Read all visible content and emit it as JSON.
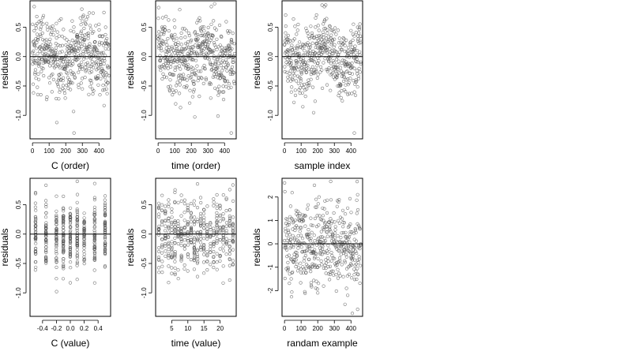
{
  "figure": {
    "background": "#ffffff",
    "point_color": "#555555",
    "line_color": "#000000"
  },
  "chart_data": [
    {
      "type": "scatter",
      "xlabel": "C (order)",
      "ylabel": "residuals",
      "xlim": [
        -15,
        470
      ],
      "ylim": [
        -1.4,
        0.95
      ],
      "xticks": [
        0,
        100,
        200,
        300,
        400
      ],
      "yticks": [
        -1.0,
        -0.5,
        0.0,
        0.5
      ],
      "ytick_labels": [
        "-1.0",
        "-0.5",
        "0.0",
        "0.5"
      ],
      "hline": 0,
      "points": {
        "x": [
          0,
          20,
          40,
          60,
          80,
          100,
          120,
          140,
          160,
          180,
          200,
          220,
          240,
          260,
          280,
          300,
          320,
          340,
          360,
          380,
          400,
          420,
          440,
          460,
          10,
          250,
          430,
          50,
          300
        ],
        "y": [
          0.55,
          0.3,
          -0.1,
          0.4,
          0.05,
          0.25,
          -0.3,
          0.1,
          0.35,
          -0.2,
          0.0,
          0.15,
          -0.45,
          0.2,
          -0.15,
          0.3,
          -0.25,
          0.05,
          0.4,
          0.15,
          0.55,
          0.35,
          0.5,
          0.2,
          0.85,
          -1.3,
          0.75,
          -0.65,
          -0.55
        ]
      },
      "n_points": 460
    },
    {
      "type": "scatter",
      "xlabel": "time (order)",
      "ylabel": "residuals",
      "xlim": [
        -15,
        470
      ],
      "ylim": [
        -1.4,
        0.95
      ],
      "xticks": [
        0,
        100,
        200,
        300,
        400
      ],
      "yticks": [
        -1.0,
        -0.5,
        0.0,
        0.5
      ],
      "ytick_labels": [
        "-1.0",
        "-0.5",
        "0.0",
        "0.5"
      ],
      "hline": 0,
      "points": {
        "x": [
          0,
          20,
          40,
          60,
          80,
          100,
          120,
          140,
          160,
          180,
          200,
          220,
          240,
          260,
          280,
          300,
          320,
          340,
          360,
          380,
          400,
          420,
          440,
          460,
          130,
          320,
          440
        ],
        "y": [
          0.3,
          0.1,
          0.45,
          -0.2,
          0.35,
          0.5,
          0.2,
          0.4,
          -0.1,
          0.25,
          -0.35,
          0.05,
          0.3,
          0.1,
          -0.2,
          0.4,
          0.55,
          0.2,
          0.0,
          -0.3,
          0.1,
          -0.15,
          0.25,
          0.05,
          0.8,
          0.85,
          -1.3
        ]
      },
      "n_points": 460
    },
    {
      "type": "scatter",
      "xlabel": "sample index",
      "ylabel": "residuals",
      "xlim": [
        -15,
        470
      ],
      "ylim": [
        -1.4,
        0.95
      ],
      "xticks": [
        0,
        100,
        200,
        300,
        400
      ],
      "yticks": [
        -1.0,
        -0.5,
        0.0,
        0.5
      ],
      "ytick_labels": [
        "-1.0",
        "-0.5",
        "0.0",
        "0.5"
      ],
      "hline": 0,
      "points": {
        "x": [
          0,
          20,
          40,
          60,
          80,
          100,
          120,
          140,
          160,
          180,
          200,
          220,
          240,
          260,
          280,
          300,
          320,
          340,
          360,
          380,
          400,
          420,
          440,
          460,
          240,
          420
        ],
        "y": [
          0.2,
          -0.35,
          0.15,
          0.3,
          0.05,
          -0.25,
          0.1,
          0.4,
          -0.3,
          0.0,
          0.15,
          0.35,
          0.6,
          0.25,
          0.45,
          0.1,
          -0.5,
          -0.7,
          -0.35,
          0.05,
          -0.2,
          0.35,
          0.5,
          0.3,
          0.85,
          -1.3
        ]
      },
      "n_points": 460
    },
    {
      "type": "scatter",
      "xlabel": "C (value)",
      "ylabel": "residuals",
      "xlim": [
        -0.58,
        0.58
      ],
      "ylim": [
        -1.4,
        0.95
      ],
      "xticks": [
        -0.4,
        -0.2,
        0.0,
        0.2,
        0.4
      ],
      "xtick_labels": [
        "-0.4",
        "-0.2",
        "0.0",
        "0.2",
        "0.4"
      ],
      "yticks": [
        -1.0,
        -0.5,
        0.0,
        0.5
      ],
      "ytick_labels": [
        "-1.0",
        "-0.5",
        "0.0",
        "0.5"
      ],
      "hline": 0,
      "x_levels": [
        -0.5,
        -0.35,
        -0.2,
        -0.1,
        0.0,
        0.1,
        0.2,
        0.35,
        0.5
      ],
      "n_points": 460
    },
    {
      "type": "scatter",
      "xlabel": "time (value)",
      "ylabel": "residuals",
      "xlim": [
        0,
        25
      ],
      "ylim": [
        -1.4,
        0.95
      ],
      "xticks": [
        5,
        10,
        15,
        20
      ],
      "yticks": [
        -1.0,
        -0.5,
        0.0,
        0.5
      ],
      "ytick_labels": [
        "-1.0",
        "-0.5",
        "0.0",
        "0.5"
      ],
      "hline": 0,
      "x_levels": [
        1,
        2,
        3,
        4,
        5,
        6,
        7,
        8,
        9,
        10,
        11,
        12,
        13,
        14,
        15,
        16,
        17,
        18,
        19,
        20,
        21,
        22,
        23,
        24
      ],
      "n_points": 460
    },
    {
      "type": "scatter",
      "xlabel": "randam example",
      "ylabel": "residuals",
      "xlim": [
        -15,
        470
      ],
      "ylim": [
        -3.1,
        2.8
      ],
      "xticks": [
        0,
        100,
        200,
        300,
        400
      ],
      "yticks": [
        -2,
        -1,
        0,
        1,
        2
      ],
      "ytick_labels": [
        "-2",
        "-1",
        "0",
        "1",
        "2"
      ],
      "hline": 0,
      "points": {
        "x": [
          0,
          40,
          80,
          120,
          160,
          200,
          240,
          280,
          320,
          360,
          400,
          440,
          180,
          380,
          440
        ],
        "y": [
          2.6,
          -1.5,
          1.2,
          -0.6,
          0.8,
          -2.1,
          1.5,
          0.3,
          -1.1,
          0.9,
          -0.4,
          2.1,
          2.5,
          -2.2,
          -2.8
        ]
      },
      "n_points": 460
    }
  ]
}
